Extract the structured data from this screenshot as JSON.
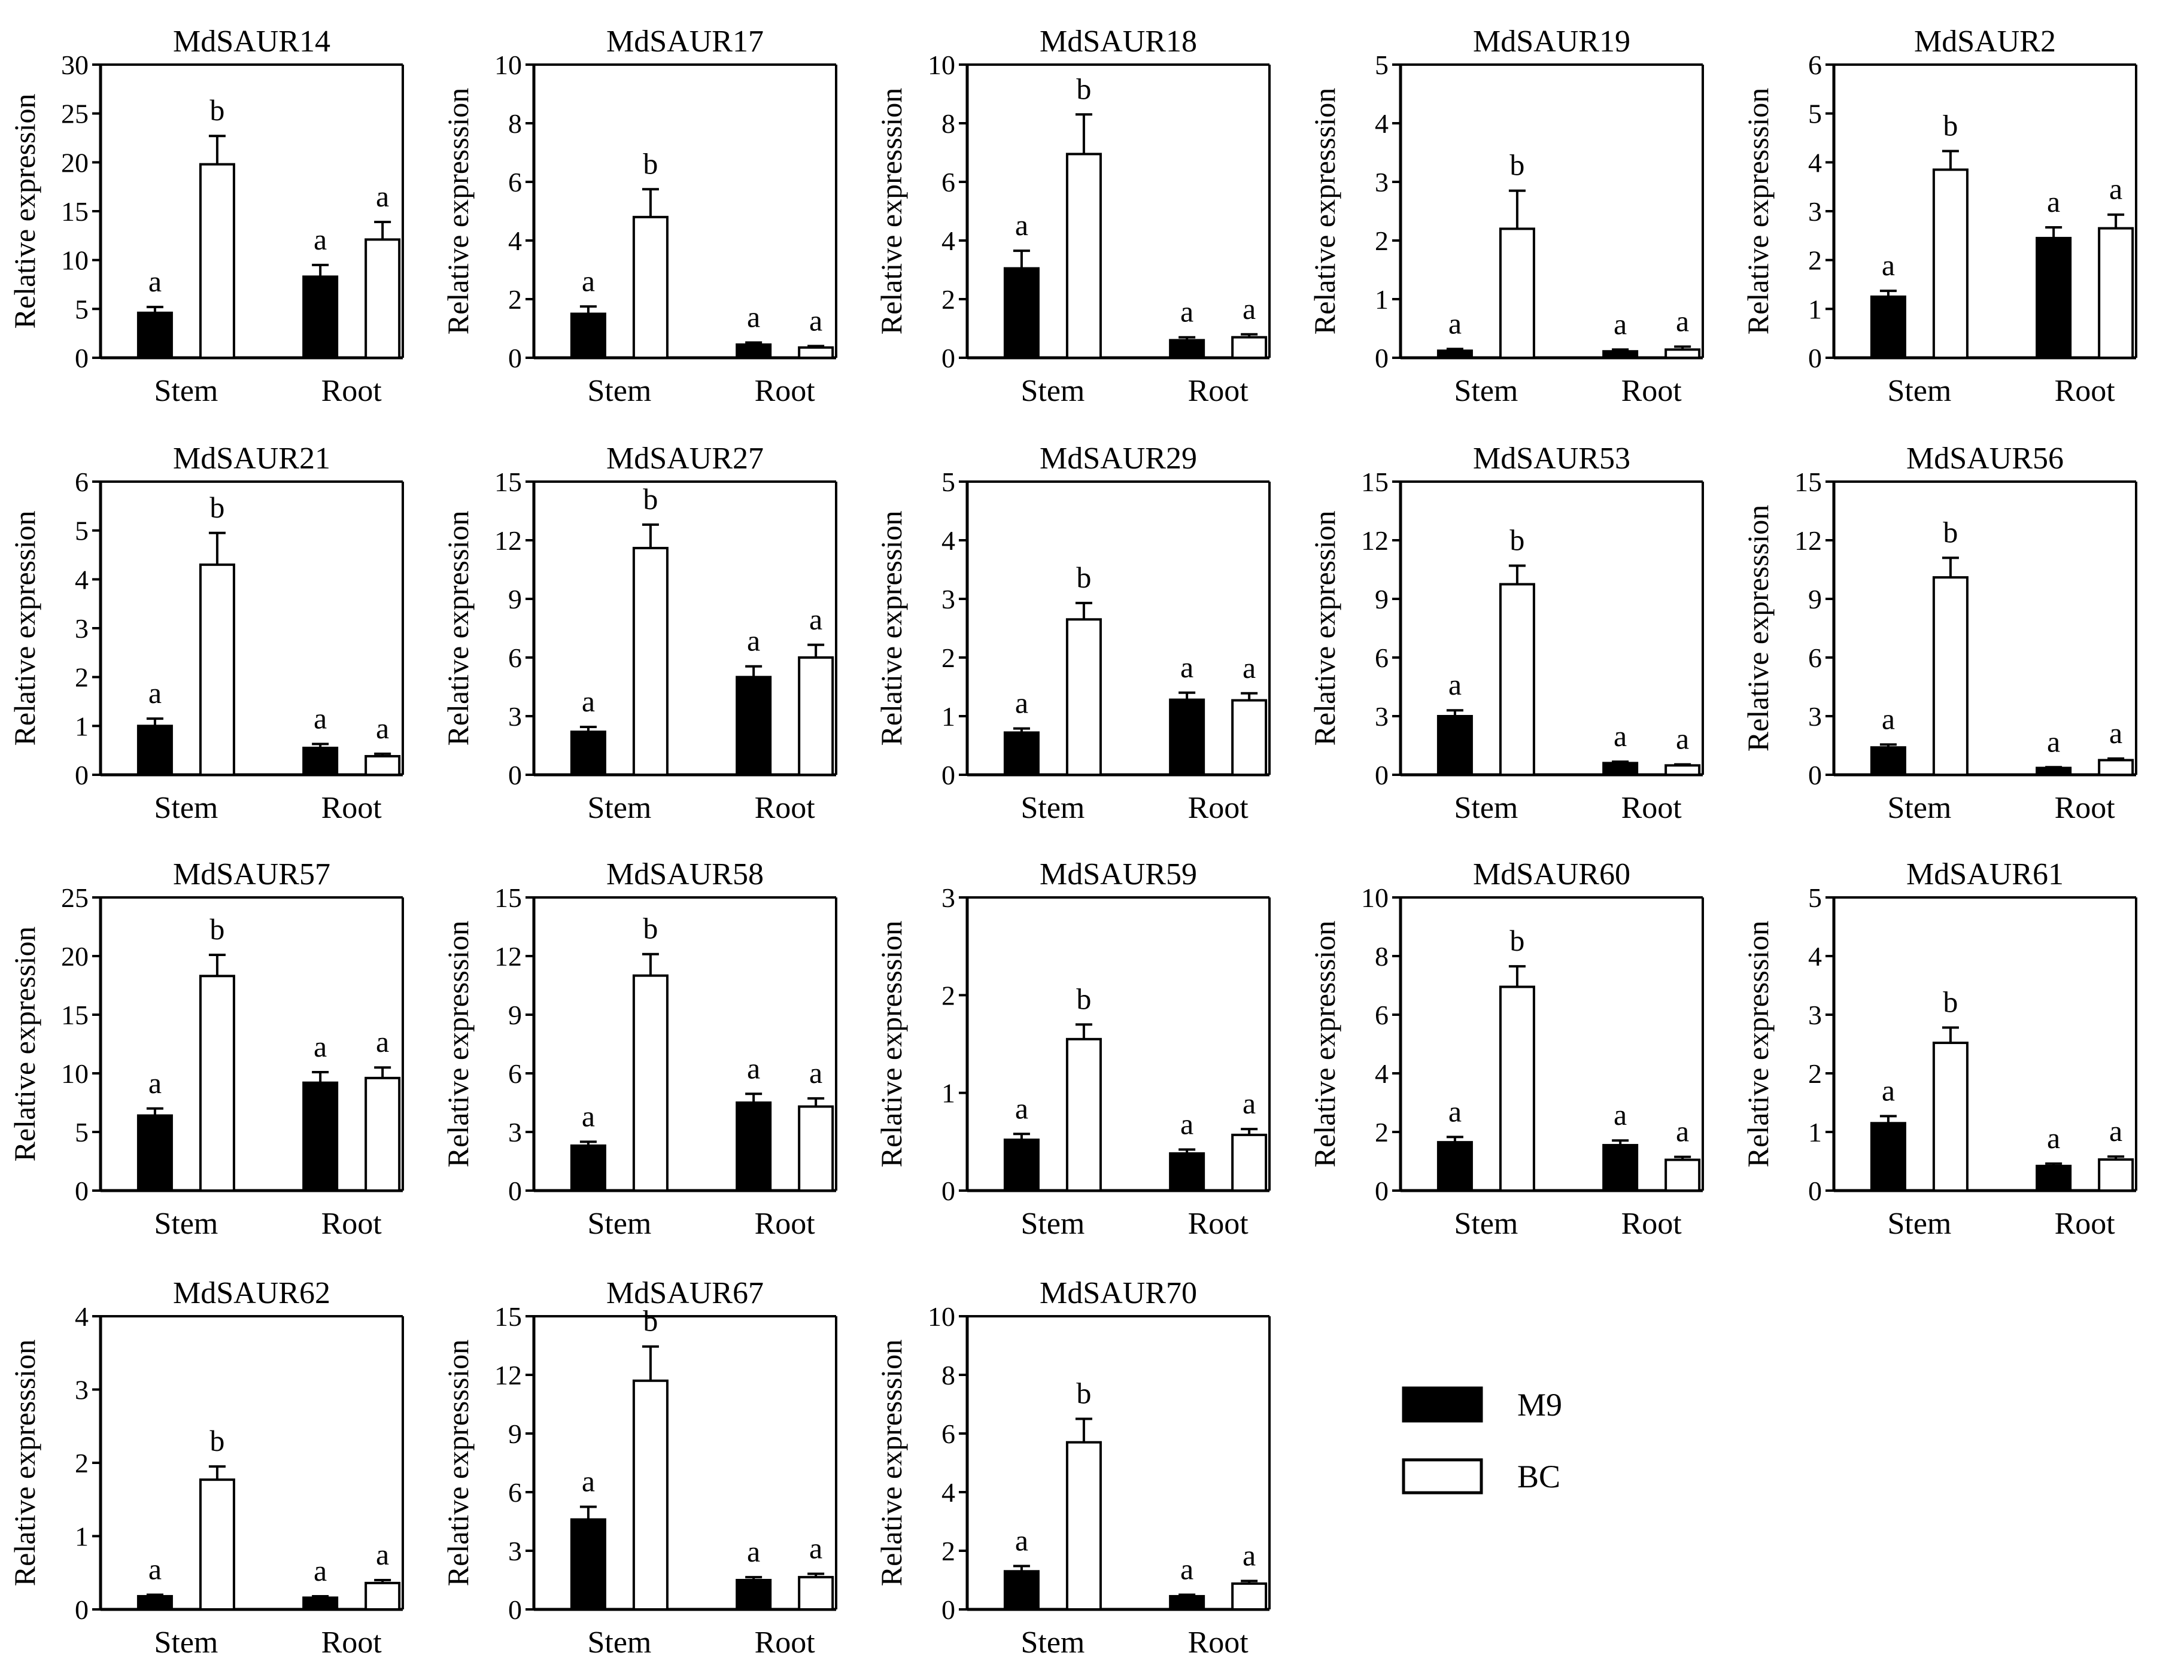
{
  "chart_data": [
    {
      "type": "bar",
      "title": "MdSAUR14",
      "ylabel": "Relative expression",
      "ylim": [
        0,
        30
      ],
      "yticks": [
        0,
        5,
        10,
        15,
        20,
        25,
        30
      ],
      "categories": [
        "Stem",
        "Root"
      ],
      "series": [
        {
          "name": "M9",
          "values": [
            4.6,
            8.3
          ],
          "errors": [
            0.6,
            1.2
          ],
          "letters": [
            "a",
            "a"
          ]
        },
        {
          "name": "BC",
          "values": [
            19.8,
            12.1
          ],
          "errors": [
            2.9,
            1.8
          ],
          "letters": [
            "b",
            "a"
          ]
        }
      ]
    },
    {
      "type": "bar",
      "title": "MdSAUR17",
      "ylabel": "Relative expresssion",
      "ylim": [
        0,
        10
      ],
      "yticks": [
        0,
        2,
        4,
        6,
        8,
        10
      ],
      "categories": [
        "Stem",
        "Root"
      ],
      "series": [
        {
          "name": "M9",
          "values": [
            1.5,
            0.45
          ],
          "errors": [
            0.25,
            0.07
          ],
          "letters": [
            "a",
            "a"
          ]
        },
        {
          "name": "BC",
          "values": [
            4.8,
            0.35
          ],
          "errors": [
            0.95,
            0.05
          ],
          "letters": [
            "b",
            "a"
          ]
        }
      ]
    },
    {
      "type": "bar",
      "title": "MdSAUR18",
      "ylabel": "Relative expresssion",
      "ylim": [
        0,
        10
      ],
      "yticks": [
        0,
        2,
        4,
        6,
        8,
        10
      ],
      "categories": [
        "Stem",
        "Root"
      ],
      "series": [
        {
          "name": "M9",
          "values": [
            3.05,
            0.6
          ],
          "errors": [
            0.6,
            0.1
          ],
          "letters": [
            "a",
            "a"
          ]
        },
        {
          "name": "BC",
          "values": [
            6.95,
            0.7
          ],
          "errors": [
            1.35,
            0.1
          ],
          "letters": [
            "b",
            "a"
          ]
        }
      ]
    },
    {
      "type": "bar",
      "title": "MdSAUR19",
      "ylabel": "Relative expresssion",
      "ylim": [
        0,
        5
      ],
      "yticks": [
        0,
        1,
        2,
        3,
        4,
        5
      ],
      "categories": [
        "Stem",
        "Root"
      ],
      "series": [
        {
          "name": "M9",
          "values": [
            0.12,
            0.11
          ],
          "errors": [
            0.03,
            0.03
          ],
          "letters": [
            "a",
            "a"
          ]
        },
        {
          "name": "BC",
          "values": [
            2.2,
            0.14
          ],
          "errors": [
            0.65,
            0.05
          ],
          "letters": [
            "b",
            "a"
          ]
        }
      ]
    },
    {
      "type": "bar",
      "title": "MdSAUR2",
      "ylabel": "Relative expresssion",
      "ylim": [
        0,
        6
      ],
      "yticks": [
        0,
        1,
        2,
        3,
        4,
        5,
        6
      ],
      "categories": [
        "Stem",
        "Root"
      ],
      "series": [
        {
          "name": "M9",
          "values": [
            1.25,
            2.45
          ],
          "errors": [
            0.12,
            0.22
          ],
          "letters": [
            "a",
            "a"
          ]
        },
        {
          "name": "BC",
          "values": [
            3.85,
            2.65
          ],
          "errors": [
            0.38,
            0.28
          ],
          "letters": [
            "b",
            "a"
          ]
        }
      ]
    },
    {
      "type": "bar",
      "title": "MdSAUR21",
      "ylabel": "Relative expression",
      "ylim": [
        0,
        6
      ],
      "yticks": [
        0,
        1,
        2,
        3,
        4,
        5,
        6
      ],
      "categories": [
        "Stem",
        "Root"
      ],
      "series": [
        {
          "name": "M9",
          "values": [
            1.0,
            0.55
          ],
          "errors": [
            0.15,
            0.08
          ],
          "letters": [
            "a",
            "a"
          ]
        },
        {
          "name": "BC",
          "values": [
            4.3,
            0.38
          ],
          "errors": [
            0.65,
            0.05
          ],
          "letters": [
            "b",
            "a"
          ]
        }
      ]
    },
    {
      "type": "bar",
      "title": "MdSAUR27",
      "ylabel": "Relative expression",
      "ylim": [
        0,
        15
      ],
      "yticks": [
        0,
        3,
        6,
        9,
        12,
        15
      ],
      "categories": [
        "Stem",
        "Root"
      ],
      "series": [
        {
          "name": "M9",
          "values": [
            2.2,
            5.0
          ],
          "errors": [
            0.25,
            0.55
          ],
          "letters": [
            "a",
            "a"
          ]
        },
        {
          "name": "BC",
          "values": [
            11.6,
            6.0
          ],
          "errors": [
            1.2,
            0.65
          ],
          "letters": [
            "b",
            "a"
          ]
        }
      ]
    },
    {
      "type": "bar",
      "title": "MdSAUR29",
      "ylabel": "Relative expression",
      "ylim": [
        0,
        5
      ],
      "yticks": [
        0,
        1,
        2,
        3,
        4,
        5
      ],
      "categories": [
        "Stem",
        "Root"
      ],
      "series": [
        {
          "name": "M9",
          "values": [
            0.72,
            1.28
          ],
          "errors": [
            0.07,
            0.12
          ],
          "letters": [
            "a",
            "a"
          ]
        },
        {
          "name": "BC",
          "values": [
            2.65,
            1.27
          ],
          "errors": [
            0.28,
            0.12
          ],
          "letters": [
            "b",
            "a"
          ]
        }
      ]
    },
    {
      "type": "bar",
      "title": "MdSAUR53",
      "ylabel": "Relative expression",
      "ylim": [
        0,
        15
      ],
      "yticks": [
        0,
        3,
        6,
        9,
        12,
        15
      ],
      "categories": [
        "Stem",
        "Root"
      ],
      "series": [
        {
          "name": "M9",
          "values": [
            3.0,
            0.6
          ],
          "errors": [
            0.3,
            0.07
          ],
          "letters": [
            "a",
            "a"
          ]
        },
        {
          "name": "BC",
          "values": [
            9.75,
            0.48
          ],
          "errors": [
            0.95,
            0.05
          ],
          "letters": [
            "b",
            "a"
          ]
        }
      ]
    },
    {
      "type": "bar",
      "title": "MdSAUR56",
      "ylabel": "Relative expresssion",
      "ylim": [
        0,
        15
      ],
      "yticks": [
        0,
        3,
        6,
        9,
        12,
        15
      ],
      "categories": [
        "Stem",
        "Root"
      ],
      "series": [
        {
          "name": "M9",
          "values": [
            1.4,
            0.35
          ],
          "errors": [
            0.15,
            0.04
          ],
          "letters": [
            "a",
            "a"
          ]
        },
        {
          "name": "BC",
          "values": [
            10.1,
            0.75
          ],
          "errors": [
            1.0,
            0.08
          ],
          "letters": [
            "b",
            "a"
          ]
        }
      ]
    },
    {
      "type": "bar",
      "title": "MdSAUR57",
      "ylabel": "Relative expression",
      "ylim": [
        0,
        25
      ],
      "yticks": [
        0,
        5,
        10,
        15,
        20,
        25
      ],
      "categories": [
        "Stem",
        "Root"
      ],
      "series": [
        {
          "name": "M9",
          "values": [
            6.4,
            9.2
          ],
          "errors": [
            0.6,
            0.9
          ],
          "letters": [
            "a",
            "a"
          ]
        },
        {
          "name": "BC",
          "values": [
            18.3,
            9.6
          ],
          "errors": [
            1.8,
            0.9
          ],
          "letters": [
            "b",
            "a"
          ]
        }
      ]
    },
    {
      "type": "bar",
      "title": "MdSAUR58",
      "ylabel": "Relative expresssion",
      "ylim": [
        0,
        15
      ],
      "yticks": [
        0,
        3,
        6,
        9,
        12,
        15
      ],
      "categories": [
        "Stem",
        "Root"
      ],
      "series": [
        {
          "name": "M9",
          "values": [
            2.3,
            4.5
          ],
          "errors": [
            0.2,
            0.45
          ],
          "letters": [
            "a",
            "a"
          ]
        },
        {
          "name": "BC",
          "values": [
            11.0,
            4.3
          ],
          "errors": [
            1.1,
            0.42
          ],
          "letters": [
            "b",
            "a"
          ]
        }
      ]
    },
    {
      "type": "bar",
      "title": "MdSAUR59",
      "ylabel": "Relative expresssion",
      "ylim": [
        0,
        3
      ],
      "yticks": [
        0,
        1,
        2,
        3
      ],
      "categories": [
        "Stem",
        "Root"
      ],
      "series": [
        {
          "name": "M9",
          "values": [
            0.52,
            0.38
          ],
          "errors": [
            0.06,
            0.04
          ],
          "letters": [
            "a",
            "a"
          ]
        },
        {
          "name": "BC",
          "values": [
            1.55,
            0.57
          ],
          "errors": [
            0.15,
            0.06
          ],
          "letters": [
            "b",
            "a"
          ]
        }
      ]
    },
    {
      "type": "bar",
      "title": "MdSAUR60",
      "ylabel": "Relative expresssion",
      "ylim": [
        0,
        10
      ],
      "yticks": [
        0,
        2,
        4,
        6,
        8,
        10
      ],
      "categories": [
        "Stem",
        "Root"
      ],
      "series": [
        {
          "name": "M9",
          "values": [
            1.65,
            1.55
          ],
          "errors": [
            0.18,
            0.16
          ],
          "letters": [
            "a",
            "a"
          ]
        },
        {
          "name": "BC",
          "values": [
            6.95,
            1.05
          ],
          "errors": [
            0.7,
            0.1
          ],
          "letters": [
            "b",
            "a"
          ]
        }
      ]
    },
    {
      "type": "bar",
      "title": "MdSAUR61",
      "ylabel": "Relative expresssion",
      "ylim": [
        0,
        5
      ],
      "yticks": [
        0,
        1,
        2,
        3,
        4,
        5
      ],
      "categories": [
        "Stem",
        "Root"
      ],
      "series": [
        {
          "name": "M9",
          "values": [
            1.15,
            0.42
          ],
          "errors": [
            0.12,
            0.04
          ],
          "letters": [
            "a",
            "a"
          ]
        },
        {
          "name": "BC",
          "values": [
            2.52,
            0.53
          ],
          "errors": [
            0.26,
            0.05
          ],
          "letters": [
            "b",
            "a"
          ]
        }
      ]
    },
    {
      "type": "bar",
      "title": "MdSAUR62",
      "ylabel": "Relative expresssion",
      "ylim": [
        0,
        4
      ],
      "yticks": [
        0,
        1,
        2,
        3,
        4
      ],
      "categories": [
        "Stem",
        "Root"
      ],
      "series": [
        {
          "name": "M9",
          "values": [
            0.18,
            0.16
          ],
          "errors": [
            0.02,
            0.02
          ],
          "letters": [
            "a",
            "a"
          ]
        },
        {
          "name": "BC",
          "values": [
            1.77,
            0.36
          ],
          "errors": [
            0.18,
            0.04
          ],
          "letters": [
            "b",
            "a"
          ]
        }
      ]
    },
    {
      "type": "bar",
      "title": "MdSAUR67",
      "ylabel": "Relative expresssion",
      "ylim": [
        0,
        15
      ],
      "yticks": [
        0,
        3,
        6,
        9,
        12,
        15
      ],
      "categories": [
        "Stem",
        "Root"
      ],
      "series": [
        {
          "name": "M9",
          "values": [
            4.6,
            1.5
          ],
          "errors": [
            0.65,
            0.15
          ],
          "letters": [
            "a",
            "a"
          ]
        },
        {
          "name": "BC",
          "values": [
            11.7,
            1.65
          ],
          "errors": [
            1.75,
            0.17
          ],
          "letters": [
            "b",
            "a"
          ]
        }
      ]
    },
    {
      "type": "bar",
      "title": "MdSAUR70",
      "ylabel": "Relative expresssion",
      "ylim": [
        0,
        10
      ],
      "yticks": [
        0,
        2,
        4,
        6,
        8,
        10
      ],
      "categories": [
        "Stem",
        "Root"
      ],
      "series": [
        {
          "name": "M9",
          "values": [
            1.3,
            0.45
          ],
          "errors": [
            0.18,
            0.05
          ],
          "letters": [
            "a",
            "a"
          ]
        },
        {
          "name": "BC",
          "values": [
            5.7,
            0.88
          ],
          "errors": [
            0.8,
            0.09
          ],
          "letters": [
            "b",
            "a"
          ]
        }
      ]
    }
  ],
  "legend": {
    "items": [
      {
        "label": "M9",
        "color": "#000000"
      },
      {
        "label": "BC",
        "color": "#ffffff"
      }
    ]
  },
  "colors": {
    "m9": "#000000",
    "bc": "#ffffff",
    "axis": "#000000"
  }
}
